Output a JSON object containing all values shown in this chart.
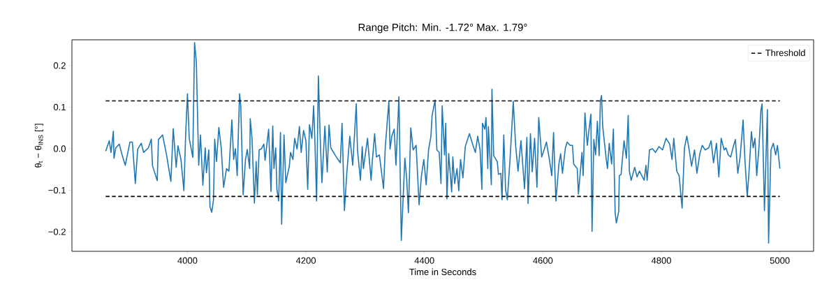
{
  "chart_data": {
    "type": "line",
    "title": "Range Pitch: Min. -1.72°  Max. 1.79°",
    "xlabel": "Time in Seconds",
    "ylabel": "θ$_{t}$ − θ$_{INS}$ [°]",
    "xlim": [
      3805,
      5057
    ],
    "ylim": [
      -0.247,
      0.262
    ],
    "xticks": [
      4000,
      4200,
      4400,
      4600,
      4800,
      5000
    ],
    "yticks": [
      {
        "value": -0.2,
        "label": "−0.2"
      },
      {
        "value": -0.1,
        "label": "−0.1"
      },
      {
        "value": 0,
        "label": "0.0"
      },
      {
        "value": 0.1,
        "label": "0.1"
      },
      {
        "value": 0.2,
        "label": "0.2"
      }
    ],
    "legend": "top right",
    "marker": "none",
    "series": [
      {
        "color": "#1f77b4",
        "line_style": "solid",
        "x": [
          3862,
          3868,
          3871,
          3875,
          3876,
          3879,
          3885,
          3889,
          3895,
          3903,
          3907,
          3912,
          3916,
          3922,
          3926,
          3934,
          3939,
          3941,
          3949,
          3951,
          3958,
          3965,
          3972,
          3976,
          3981,
          3984,
          3989,
          3994,
          3997,
          4000,
          4003,
          4009,
          4012,
          4015,
          4019,
          4022,
          4026,
          4030,
          4032,
          4036,
          4038,
          4041,
          4044,
          4046,
          4049,
          4053,
          4057,
          4061,
          4066,
          4070,
          4075,
          4078,
          4081,
          4084,
          4086,
          4088,
          4090,
          4094,
          4098,
          4101,
          4105,
          4106,
          4109,
          4113,
          4116,
          4118,
          4121,
          4125,
          4129,
          4131,
          4137,
          4141,
          4144,
          4146,
          4149,
          4151,
          4154,
          4157,
          4159,
          4163,
          4166,
          4172,
          4174,
          4178,
          4181,
          4185,
          4189,
          4192,
          4196,
          4200,
          4203,
          4206,
          4210,
          4213,
          4215,
          4218,
          4221,
          4224,
          4227,
          4232,
          4236,
          4239,
          4242,
          4250,
          4258,
          4261,
          4265,
          4269,
          4274,
          4279,
          4285,
          4287,
          4292,
          4295,
          4297,
          4301,
          4304,
          4310,
          4312,
          4316,
          4319,
          4324,
          4331,
          4334,
          4340,
          4342,
          4345,
          4349,
          4352,
          4357,
          4361,
          4367,
          4370,
          4373,
          4377,
          4381,
          4386,
          4391,
          4395,
          4399,
          4403,
          4407,
          4411,
          4413,
          4418,
          4421,
          4425,
          4428,
          4430,
          4434,
          4436,
          4438,
          4441,
          4446,
          4448,
          4451,
          4455,
          4458,
          4461,
          4465,
          4469,
          4476,
          4482,
          4486,
          4490,
          4494,
          4497,
          4498,
          4502,
          4504,
          4507,
          4508,
          4513,
          4514,
          4517,
          4523,
          4525,
          4529,
          4531,
          4534,
          4537,
          4540,
          4545,
          4550,
          4554,
          4558,
          4563,
          4569,
          4573,
          4575,
          4579,
          4582,
          4586,
          4590,
          4593,
          4598,
          4602,
          4606,
          4611,
          4615,
          4618,
          4622,
          4627,
          4630,
          4633,
          4638,
          4641,
          4646,
          4650,
          4652,
          4658,
          4660,
          4666,
          4668,
          4671,
          4675,
          4678,
          4681,
          4683,
          4686,
          4689,
          4692,
          4695,
          4697,
          4699,
          4701,
          4707,
          4709,
          4712,
          4716,
          4719,
          4722,
          4724,
          4728,
          4729,
          4732,
          4737,
          4741,
          4744,
          4746,
          4749,
          4755,
          4759,
          4763,
          4767,
          4771,
          4774,
          4776,
          4780,
          4785,
          4790,
          4796,
          4802,
          4808,
          4814,
          4818,
          4821,
          4826,
          4830,
          4835,
          4839,
          4843,
          4847,
          4851,
          4856,
          4860,
          4865,
          4869,
          4874,
          4880,
          4884,
          4888,
          4893,
          4897,
          4901,
          4906,
          4909,
          4913,
          4917,
          4922,
          4925,
          4929,
          4933,
          4938,
          4941,
          4945,
          4948,
          4952,
          4955,
          4958,
          4961,
          4965,
          4968,
          4970,
          4974,
          4979,
          4981,
          4985,
          4989,
          4993,
          4996,
          5000
        ],
        "values": [
          -0.006,
          0.019,
          -0.009,
          0.042,
          -0.023,
          0.002,
          0.011,
          -0.012,
          -0.04,
          0.016,
          0.016,
          -0.084,
          -0.001,
          0.013,
          -0.009,
          0.002,
          0.023,
          -0.041,
          -0.077,
          0.022,
          0.033,
          -0.017,
          -0.079,
          0.048,
          -0.045,
          0.007,
          -0.026,
          -0.101,
          0.035,
          0.132,
          0.025,
          -0.021,
          0.255,
          0.209,
          -0.04,
          0.033,
          -0.088,
          0.002,
          -0.058,
          -0.003,
          -0.14,
          -0.153,
          -0.123,
          0.023,
          -0.031,
          0.051,
          0.002,
          -0.093,
          -0.048,
          -0.054,
          0.069,
          -0.026,
          0.0,
          -0.065,
          0.041,
          0.132,
          0.103,
          -0.111,
          -0.026,
          -0.002,
          -0.048,
          0.072,
          0.025,
          -0.131,
          -0.031,
          -0.111,
          -0.003,
          0.0,
          0.011,
          -0.028,
          0.047,
          -0.103,
          0.055,
          -0.048,
          0.002,
          -0.098,
          -0.126,
          0.039,
          -0.182,
          0.033,
          -0.082,
          -0.042,
          -0.009,
          -0.026,
          0.025,
          -0.001,
          0.053,
          -0.009,
          0.044,
          0.019,
          -0.098,
          0.058,
          0.025,
          0.103,
          0.025,
          -0.126,
          0.175,
          0.03,
          -0.082,
          0.054,
          -0.056,
          0.057,
          0.002,
          -0.017,
          -0.034,
          0.061,
          -0.149,
          -0.059,
          0.03,
          -0.04,
          0.108,
          -0.003,
          -0.076,
          0.005,
          -0.048,
          -0.006,
          0.025,
          -0.076,
          -0.031,
          0.036,
          -0.02,
          -0.015,
          -0.096,
          0.005,
          0.114,
          -0.001,
          0.03,
          0.047,
          -0.04,
          0.125,
          -0.221,
          -0.023,
          -0.07,
          -0.154,
          0.05,
          -0.003,
          0.008,
          -0.135,
          -0.065,
          -0.026,
          -0.087,
          -0.003,
          0.03,
          0.08,
          0.117,
          -0.003,
          -0.009,
          -0.084,
          0.103,
          -0.015,
          0.061,
          -0.121,
          -0.012,
          -0.104,
          -0.02,
          -0.084,
          -0.048,
          -0.101,
          -0.026,
          -0.07,
          0.005,
          0.036,
          0.008,
          -0.009,
          0.03,
          -0.003,
          -0.098,
          0.061,
          0.047,
          0.075,
          -0.048,
          0.053,
          -0.087,
          0.143,
          -0.017,
          -0.031,
          -0.062,
          -0.059,
          -0.123,
          0.033,
          -0.098,
          -0.123,
          -0.015,
          0.114,
          0.008,
          -0.054,
          0.019,
          -0.096,
          0.027,
          -0.132,
          0.036,
          -0.056,
          0.025,
          -0.093,
          0.075,
          -0.02,
          -0.003,
          0.016,
          -0.026,
          -0.065,
          0.039,
          -0.126,
          -0.037,
          -0.012,
          -0.059,
          0.002,
          0.016,
          0.008,
          0.008,
          -0.037,
          -0.048,
          -0.109,
          -0.009,
          -0.065,
          0.086,
          0.008,
          0.047,
          0.083,
          -0.199,
          0.022,
          -0.015,
          0.066,
          -0.017,
          0.114,
          0.128,
          0.053,
          -0.026,
          -0.048,
          0.013,
          -0.037,
          0.047,
          -0.154,
          -0.179,
          -0.151,
          -0.065,
          -0.062,
          0.019,
          -0.023,
          0.08,
          -0.054,
          -0.076,
          -0.045,
          -0.068,
          -0.054,
          -0.065,
          -0.076,
          -0.04,
          -0.076,
          -0.003,
          0.0,
          -0.009,
          0.005,
          -0.003,
          0.025,
          0.011,
          -0.026,
          0.025,
          -0.054,
          -0.065,
          -0.143,
          0.002,
          0.03,
          -0.003,
          -0.042,
          -0.003,
          -0.059,
          -0.012,
          0.008,
          -0.003,
          0.002,
          0.019,
          -0.034,
          0.013,
          -0.068,
          0.025,
          -0.003,
          0.002,
          -0.015,
          -0.02,
          0.008,
          0.022,
          -0.059,
          -0.02,
          0.069,
          -0.026,
          -0.115,
          -0.056,
          0.041,
          0.002,
          0.025,
          -0.065,
          0.008,
          0.092,
          0.108,
          -0.149,
          0.094,
          -0.227,
          -0.003,
          0.013,
          -0.015,
          0.008,
          -0.048
        ]
      },
      {
        "name": "Threshold",
        "color": "#000000",
        "line_style": "dashed",
        "x": [
          3862,
          5000
        ],
        "values": [
          0.115,
          0.115
        ]
      },
      {
        "color": "#000000",
        "line_style": "dashed",
        "x": [
          3862,
          5000
        ],
        "values": [
          -0.115,
          -0.115
        ]
      }
    ]
  }
}
